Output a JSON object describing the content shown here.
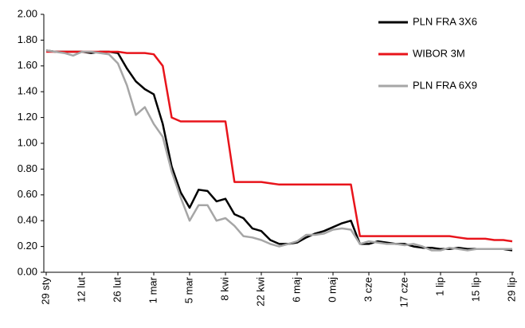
{
  "chart_data": {
    "type": "line",
    "categories": [
      "29 sty",
      null,
      null,
      null,
      "12 lut",
      null,
      null,
      null,
      "26 lut",
      null,
      null,
      null,
      "1 mar",
      null,
      null,
      null,
      "5 mar",
      null,
      null,
      null,
      "8 kwi",
      null,
      null,
      null,
      "22 kwi",
      null,
      null,
      null,
      "6 maj",
      null,
      null,
      null,
      "0 maj",
      null,
      null,
      null,
      "3 cze",
      null,
      null,
      null,
      "17 cze",
      null,
      null,
      null,
      "1 lip",
      null,
      null,
      null,
      "15 lip",
      null,
      null,
      null,
      "29 lip"
    ],
    "series": [
      {
        "name": "PLN FRA 3X6",
        "color": "#000000",
        "values": [
          1.72,
          1.71,
          1.71,
          1.71,
          1.71,
          1.7,
          1.71,
          1.71,
          1.7,
          1.58,
          1.48,
          1.42,
          1.38,
          1.15,
          0.82,
          0.62,
          0.5,
          0.64,
          0.63,
          0.55,
          0.57,
          0.45,
          0.42,
          0.34,
          0.32,
          0.25,
          0.22,
          0.22,
          0.23,
          0.27,
          0.3,
          0.32,
          0.35,
          0.38,
          0.4,
          0.22,
          0.22,
          0.24,
          0.23,
          0.22,
          0.22,
          0.2,
          0.19,
          0.19,
          0.18,
          0.18,
          0.19,
          0.18,
          0.18,
          0.18,
          0.18,
          0.18,
          0.17
        ]
      },
      {
        "name": "WIBOR 3M",
        "color": "#e8141b",
        "values": [
          1.71,
          1.71,
          1.71,
          1.71,
          1.71,
          1.71,
          1.71,
          1.71,
          1.71,
          1.7,
          1.7,
          1.7,
          1.69,
          1.6,
          1.2,
          1.17,
          1.17,
          1.17,
          1.17,
          1.17,
          1.17,
          0.7,
          0.7,
          0.7,
          0.7,
          0.69,
          0.68,
          0.68,
          0.68,
          0.68,
          0.68,
          0.68,
          0.68,
          0.68,
          0.68,
          0.28,
          0.28,
          0.28,
          0.28,
          0.28,
          0.28,
          0.28,
          0.28,
          0.28,
          0.28,
          0.28,
          0.27,
          0.26,
          0.26,
          0.26,
          0.25,
          0.25,
          0.24
        ]
      },
      {
        "name": "PLN FRA 6X9",
        "color": "#a6a6a6",
        "values": [
          1.72,
          1.71,
          1.7,
          1.68,
          1.71,
          1.71,
          1.7,
          1.69,
          1.62,
          1.45,
          1.22,
          1.28,
          1.15,
          1.05,
          0.78,
          0.58,
          0.4,
          0.52,
          0.52,
          0.4,
          0.42,
          0.36,
          0.28,
          0.27,
          0.25,
          0.22,
          0.2,
          0.22,
          0.24,
          0.29,
          0.29,
          0.3,
          0.33,
          0.34,
          0.33,
          0.22,
          0.24,
          0.23,
          0.22,
          0.22,
          0.21,
          0.22,
          0.2,
          0.17,
          0.17,
          0.19,
          0.18,
          0.17,
          0.18,
          0.18,
          0.18,
          0.18,
          0.18
        ]
      }
    ],
    "ylim": [
      0,
      2
    ],
    "yticks": [
      {
        "value": 0,
        "label": "0.00"
      },
      {
        "value": 0.2,
        "label": "0.20"
      },
      {
        "value": 0.4,
        "label": "0.40"
      },
      {
        "value": 0.6,
        "label": "0.60"
      },
      {
        "value": 0.8,
        "label": "0.80"
      },
      {
        "value": 1,
        "label": "1.00"
      },
      {
        "value": 1.2,
        "label": "1.20"
      },
      {
        "value": 1.4,
        "label": "1.40"
      },
      {
        "value": 1.6,
        "label": "1.60"
      },
      {
        "value": 1.8,
        "label": "1.80"
      },
      {
        "value": 2,
        "label": "2.00"
      }
    ],
    "legend": "upper right",
    "grid": false
  }
}
